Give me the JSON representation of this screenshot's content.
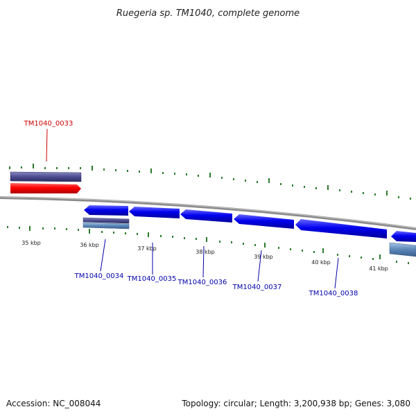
{
  "title": "Ruegeria sp. TM1040, complete genome",
  "footer": {
    "accession": "Accession: NC_008044",
    "summary": "Topology: circular; Length: 3,200,938 bp; Genes: 3,080"
  },
  "colors": {
    "backbone": "#8a8a8a",
    "tick": "#2a7a2a",
    "forward_gene": "#ff0000",
    "reverse_gene": "#0000ee",
    "top_label": "#cc0000",
    "bottom_label": "#0000aa",
    "cds_top": "#4b4b8f",
    "cds_bottom": "#5a86b8"
  },
  "kbp_labels": [
    "35 kbp",
    "36 kbp",
    "37 kbp",
    "38 kbp",
    "39 kbp",
    "40 kbp",
    "41 kbp"
  ],
  "genes": [
    {
      "id": "TM1040_0033",
      "strand": "+"
    },
    {
      "id": "TM1040_0034",
      "strand": "-"
    },
    {
      "id": "TM1040_0035",
      "strand": "-"
    },
    {
      "id": "TM1040_0036",
      "strand": "-"
    },
    {
      "id": "TM1040_0037",
      "strand": "-"
    },
    {
      "id": "TM1040_0038",
      "strand": "-"
    }
  ]
}
